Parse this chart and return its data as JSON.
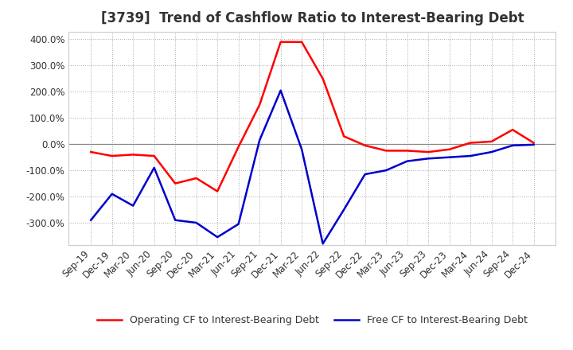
{
  "title": "[3739]  Trend of Cashflow Ratio to Interest-Bearing Debt",
  "x_labels": [
    "Sep-19",
    "Dec-19",
    "Mar-20",
    "Jun-20",
    "Sep-20",
    "Dec-20",
    "Mar-21",
    "Jun-21",
    "Sep-21",
    "Dec-21",
    "Mar-22",
    "Jun-22",
    "Sep-22",
    "Dec-22",
    "Mar-23",
    "Jun-23",
    "Sep-23",
    "Dec-23",
    "Mar-24",
    "Jun-24",
    "Sep-24",
    "Dec-24"
  ],
  "operating_cf": [
    -30,
    -45,
    -40,
    -45,
    -150,
    -130,
    -180,
    -10,
    150,
    390,
    390,
    250,
    30,
    -5,
    -25,
    -25,
    -30,
    -20,
    5,
    10,
    55,
    5
  ],
  "free_cf": [
    -290,
    -190,
    -235,
    -90,
    -290,
    -300,
    -355,
    -305,
    15,
    205,
    -20,
    -380,
    -250,
    -115,
    -100,
    -65,
    -55,
    -50,
    -45,
    -30,
    -5,
    -2
  ],
  "operating_color": "#FF0000",
  "free_color": "#0000CC",
  "background_color": "#FFFFFF",
  "plot_bg_color": "#FFFFFF",
  "grid_color": "#AAAAAA",
  "ylim": [
    -385,
    430
  ],
  "yticks": [
    -300,
    -200,
    -100,
    0,
    100,
    200,
    300,
    400
  ],
  "legend_op": "Operating CF to Interest-Bearing Debt",
  "legend_free": "Free CF to Interest-Bearing Debt",
  "title_fontsize": 12,
  "tick_fontsize": 8.5,
  "legend_fontsize": 9,
  "line_width": 1.8,
  "title_color": "#333333"
}
